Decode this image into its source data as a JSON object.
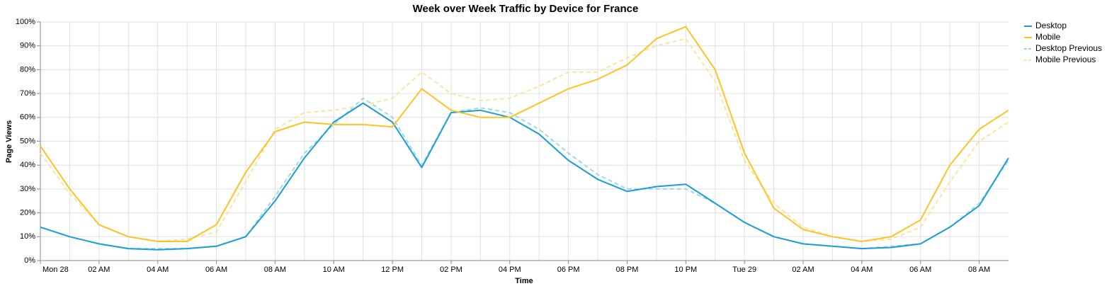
{
  "chart_data": {
    "type": "line",
    "title": "Week over Week Traffic by Device for France",
    "x_label": "Time",
    "y_label": "Page Views",
    "x": [
      0,
      1,
      2,
      3,
      4,
      5,
      6,
      7,
      8,
      9,
      10,
      11,
      12,
      13,
      14,
      15,
      16,
      17,
      18,
      19,
      20,
      21,
      22,
      23,
      24,
      25,
      26,
      27,
      28,
      29,
      30,
      31,
      32,
      33
    ],
    "xlim": [
      0,
      33
    ],
    "xticks": [
      {
        "value": 0,
        "label": "Mon 28"
      },
      {
        "value": 2,
        "label": "02 AM"
      },
      {
        "value": 4,
        "label": "04 AM"
      },
      {
        "value": 6,
        "label": "06 AM"
      },
      {
        "value": 8,
        "label": "08 AM"
      },
      {
        "value": 10,
        "label": "10 AM"
      },
      {
        "value": 12,
        "label": "12 PM"
      },
      {
        "value": 14,
        "label": "02 PM"
      },
      {
        "value": 16,
        "label": "04 PM"
      },
      {
        "value": 18,
        "label": "06 PM"
      },
      {
        "value": 20,
        "label": "08 PM"
      },
      {
        "value": 22,
        "label": "10 PM"
      },
      {
        "value": 24,
        "label": "Tue 29"
      },
      {
        "value": 26,
        "label": "02 AM"
      },
      {
        "value": 28,
        "label": "04 AM"
      },
      {
        "value": 30,
        "label": "06 AM"
      },
      {
        "value": 32,
        "label": "08 AM"
      }
    ],
    "ylim": [
      0,
      100
    ],
    "yticks": [
      {
        "value": 0,
        "label": "0%"
      },
      {
        "value": 10,
        "label": "10%"
      },
      {
        "value": 20,
        "label": "20%"
      },
      {
        "value": 30,
        "label": "30%"
      },
      {
        "value": 40,
        "label": "40%"
      },
      {
        "value": 50,
        "label": "50%"
      },
      {
        "value": 60,
        "label": "60%"
      },
      {
        "value": 70,
        "label": "70%"
      },
      {
        "value": 80,
        "label": "80%"
      },
      {
        "value": 90,
        "label": "90%"
      },
      {
        "value": 100,
        "label": "100%"
      }
    ],
    "grid": true,
    "legend": "right",
    "series": [
      {
        "name": "Desktop",
        "color": "#1a9ed4",
        "dashed": false,
        "values": [
          14,
          10,
          7,
          5,
          4.5,
          5,
          6,
          10,
          25,
          43,
          58,
          66,
          58,
          39,
          62,
          63,
          60,
          53,
          42,
          34,
          29,
          31,
          32,
          24,
          16,
          10,
          7,
          6,
          5,
          5.5,
          7,
          14,
          23,
          43
        ]
      },
      {
        "name": "Mobile",
        "color": "#fdc325",
        "dashed": false,
        "values": [
          48,
          30,
          15,
          10,
          8,
          8,
          15,
          37,
          54,
          58,
          57,
          57,
          56,
          72,
          63,
          60,
          60,
          66,
          72,
          76,
          82,
          93,
          98,
          80,
          45,
          22,
          13,
          10,
          8,
          10,
          17,
          40,
          55,
          63
        ]
      },
      {
        "name": "Desktop Previous",
        "color": "#9fd8ee",
        "dashed": true,
        "values": [
          14,
          10,
          7,
          5,
          5,
          5,
          6,
          10,
          27,
          45,
          57,
          68,
          60,
          40,
          62,
          64,
          62,
          55,
          45,
          36,
          30,
          30,
          30,
          24,
          16,
          10,
          7,
          6,
          5,
          6,
          7,
          14,
          24,
          42
        ]
      },
      {
        "name": "Mobile Previous",
        "color": "#fde3a0",
        "dashed": true,
        "values": [
          45,
          28,
          15,
          10,
          8,
          9,
          12,
          33,
          55,
          62,
          63,
          65,
          68,
          79,
          70,
          67,
          68,
          73,
          79,
          79,
          85,
          90,
          93,
          75,
          42,
          24,
          14,
          10,
          8,
          9,
          14,
          33,
          50,
          58
        ]
      }
    ]
  }
}
